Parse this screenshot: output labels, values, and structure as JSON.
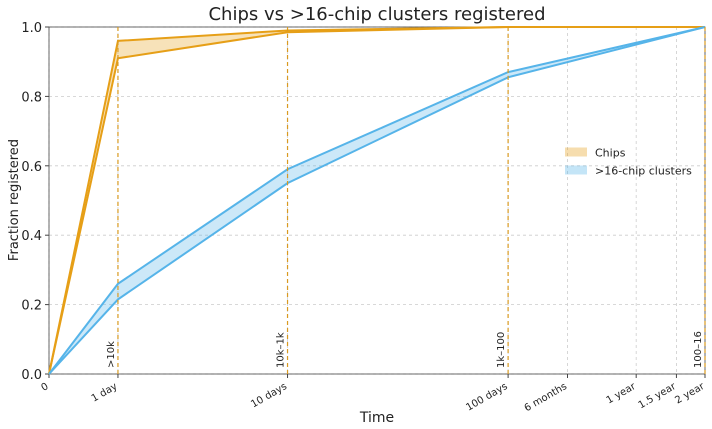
{
  "chart_data": {
    "type": "band",
    "title": "Chips vs >16-chip clusters registered",
    "xlabel": "Time",
    "ylabel": "Fraction registered",
    "xscale": "log1p",
    "x": [
      0,
      1,
      10,
      100,
      730
    ],
    "series": [
      {
        "name": "Chips",
        "color": "#e69f17",
        "values": [
          0,
          0.96,
          0.99,
          1.0,
          1.0
        ],
        "lower": [
          0,
          0.91,
          0.985,
          1.0,
          1.0
        ]
      },
      {
        "name": ">16-chip clusters",
        "color": "#56b4e9",
        "values": [
          0,
          0.26,
          0.59,
          0.87,
          1.0
        ],
        "lower": [
          0,
          0.215,
          0.55,
          0.855,
          1.0
        ]
      }
    ],
    "xlim": [
      0,
      730
    ],
    "xticks": [
      0,
      {
        "value": 1,
        "label": "1 day"
      },
      {
        "value": 10,
        "label": "10 days"
      },
      {
        "value": 100,
        "label": "100 days"
      },
      {
        "value": 182.5,
        "label": "6 months"
      },
      {
        "value": 365,
        "label": "1 year"
      },
      {
        "value": 547.5,
        "label": "1.5 year"
      },
      {
        "value": 730,
        "label": "2 year"
      }
    ],
    "ylim": [
      0,
      1
    ],
    "yticks": [
      {
        "value": 0,
        "label": "0.0"
      },
      0.2,
      0.4,
      0.6,
      0.8,
      {
        "value": 1,
        "label": "1.0"
      }
    ],
    "annotations": [
      {
        "x": 1,
        "text": ">10k"
      },
      {
        "x": 10,
        "text": "10k–1k"
      },
      {
        "x": 100,
        "text": "1k–100"
      },
      {
        "x": 730,
        "text": "100–16"
      }
    ],
    "annotation_color": "#d99a20",
    "grid": true,
    "legend": "center right"
  }
}
